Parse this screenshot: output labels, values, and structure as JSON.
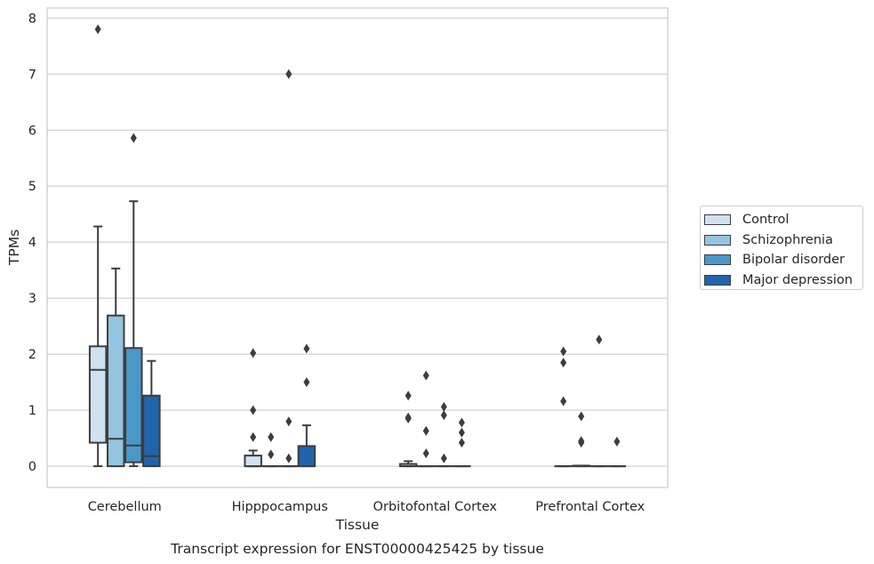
{
  "chart_data": {
    "type": "box",
    "title": "Transcript expression for ENST00000425425 by tissue",
    "xlabel": "Tissue",
    "ylabel": "TPMs",
    "ylim": [
      -0.38,
      8.18
    ],
    "yticks": [
      0,
      1,
      2,
      3,
      4,
      5,
      6,
      7,
      8
    ],
    "grid": "horizontal",
    "legend_position": "right",
    "categories": [
      "Cerebellum",
      "Hipppocampus",
      "Orbitofontal Cortex",
      "Prefrontal Cortex"
    ],
    "series": [
      {
        "name": "Control",
        "color": "#d0e1f2",
        "boxes": [
          {
            "whislo": 0,
            "q1": 0.42,
            "med": 1.72,
            "q3": 2.14,
            "whishi": 4.28,
            "fliers": [
              7.8
            ]
          },
          {
            "whislo": 0,
            "q1": 0,
            "med": 0,
            "q3": 0.19,
            "whishi": 0.28,
            "fliers": [
              0.52,
              1.0,
              2.02
            ]
          },
          {
            "whislo": 0,
            "q1": 0,
            "med": 0,
            "q3": 0.04,
            "whishi": 0.09,
            "fliers": [
              0.85,
              0.87,
              1.26
            ]
          },
          {
            "whislo": 0,
            "q1": 0,
            "med": 0,
            "q3": 0,
            "whishi": 0,
            "fliers": [
              1.16,
              1.85,
              2.05
            ]
          }
        ]
      },
      {
        "name": "Schizophrenia",
        "color": "#94c4df",
        "boxes": [
          {
            "whislo": 0,
            "q1": 0,
            "med": 0.49,
            "q3": 2.69,
            "whishi": 3.53,
            "fliers": []
          },
          {
            "whislo": 0,
            "q1": 0,
            "med": 0,
            "q3": 0,
            "whishi": 0,
            "fliers": [
              0.21,
              0.52
            ]
          },
          {
            "whislo": 0,
            "q1": 0,
            "med": 0,
            "q3": 0,
            "whishi": 0,
            "fliers": [
              0.23,
              0.63,
              1.62
            ]
          },
          {
            "whislo": 0,
            "q1": 0,
            "med": 0,
            "q3": 0.01,
            "whishi": 0.01,
            "fliers": [
              0.42,
              0.45,
              0.89
            ]
          }
        ]
      },
      {
        "name": "Bipolar disorder",
        "color": "#4a98c9",
        "boxes": [
          {
            "whislo": 0,
            "q1": 0.07,
            "med": 0.37,
            "q3": 2.11,
            "whishi": 4.73,
            "fliers": [
              5.86
            ]
          },
          {
            "whislo": 0,
            "q1": 0,
            "med": 0,
            "q3": 0,
            "whishi": 0,
            "fliers": [
              0.14,
              0.8,
              7.0
            ]
          },
          {
            "whislo": 0,
            "q1": 0,
            "med": 0,
            "q3": 0,
            "whishi": 0,
            "fliers": [
              0.14,
              0.91,
              1.06
            ]
          },
          {
            "whislo": 0,
            "q1": 0,
            "med": 0,
            "q3": 0,
            "whishi": 0,
            "fliers": [
              2.26
            ]
          }
        ]
      },
      {
        "name": "Major depression",
        "color": "#2164ab",
        "boxes": [
          {
            "whislo": 0,
            "q1": 0,
            "med": 0.18,
            "q3": 1.26,
            "whishi": 1.88,
            "fliers": []
          },
          {
            "whislo": 0,
            "q1": 0,
            "med": 0,
            "q3": 0.36,
            "whishi": 0.73,
            "fliers": [
              1.5,
              2.1
            ]
          },
          {
            "whislo": 0,
            "q1": 0,
            "med": 0,
            "q3": 0,
            "whishi": 0,
            "fliers": [
              0.42,
              0.6,
              0.78
            ]
          },
          {
            "whislo": 0,
            "q1": 0,
            "med": 0,
            "q3": 0,
            "whishi": 0,
            "fliers": [
              0.44
            ]
          }
        ]
      }
    ]
  }
}
